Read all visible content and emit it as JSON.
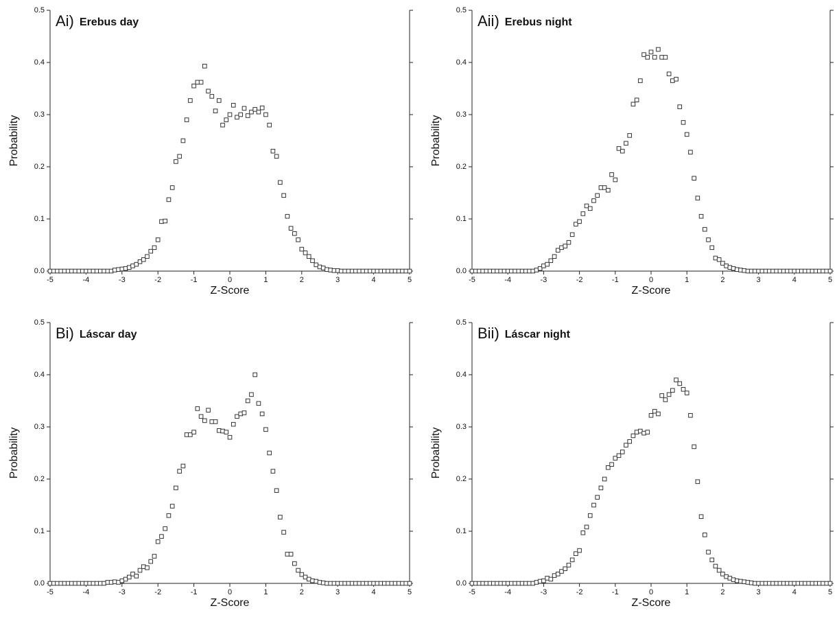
{
  "chart_data": [
    {
      "type": "scatter",
      "panel_label": "Ai)",
      "title": "Erebus day",
      "x_label": "Z-Score",
      "y_label": "Probability",
      "color": "#333333",
      "xlim": [
        -5,
        5
      ],
      "ylim": [
        0,
        0.5
      ],
      "xticks": [
        -5,
        -4,
        -3,
        -2,
        -1,
        0,
        1,
        2,
        3,
        4,
        5
      ],
      "yticks": [
        {
          "value": 0,
          "label": "0.0"
        },
        0.1,
        0.2,
        0.3,
        0.4,
        0.5
      ],
      "x": [
        -5,
        -4.9,
        -4.8,
        -4.7,
        -4.6,
        -4.5,
        -4.4,
        -4.3,
        -4.2,
        -4.1,
        -4,
        -3.9,
        -3.8,
        -3.7,
        -3.6,
        -3.5,
        -3.4,
        -3.3,
        -3.2,
        -3.1,
        -3,
        -2.9,
        -2.8,
        -2.7,
        -2.6,
        -2.5,
        -2.4,
        -2.3,
        -2.2,
        -2.1,
        -2,
        -1.9,
        -1.8,
        -1.7,
        -1.6,
        -1.5,
        -1.4,
        -1.3,
        -1.2,
        -1.1,
        -1,
        -0.9,
        -0.8,
        -0.7,
        -0.6,
        -0.5,
        -0.4,
        -0.3,
        -0.2,
        -0.1,
        0,
        0.1,
        0.2,
        0.3,
        0.4,
        0.5,
        0.6,
        0.7,
        0.8,
        0.9,
        1,
        1.1,
        1.2,
        1.3,
        1.4,
        1.5,
        1.6,
        1.7,
        1.8,
        1.9,
        2,
        2.1,
        2.2,
        2.3,
        2.4,
        2.5,
        2.6,
        2.7,
        2.8,
        2.9,
        3,
        3.1,
        3.2,
        3.3,
        3.4,
        3.5,
        3.6,
        3.7,
        3.8,
        3.9,
        4,
        4.1,
        4.2,
        4.3,
        4.4,
        4.5,
        4.6,
        4.7,
        4.8,
        4.9,
        5
      ],
      "values": [
        0,
        0,
        0,
        0,
        0,
        0,
        0,
        0,
        0,
        0,
        0,
        0,
        0,
        0,
        0,
        0,
        0,
        0,
        0.002,
        0.003,
        0.004,
        0.005,
        0.007,
        0.01,
        0.013,
        0.018,
        0.022,
        0.028,
        0.038,
        0.045,
        0.06,
        0.095,
        0.096,
        0.137,
        0.16,
        0.21,
        0.22,
        0.25,
        0.29,
        0.327,
        0.355,
        0.362,
        0.362,
        0.393,
        0.345,
        0.335,
        0.307,
        0.327,
        0.28,
        0.29,
        0.3,
        0.318,
        0.295,
        0.3,
        0.312,
        0.298,
        0.305,
        0.31,
        0.305,
        0.313,
        0.3,
        0.28,
        0.23,
        0.22,
        0.17,
        0.145,
        0.105,
        0.082,
        0.072,
        0.06,
        0.042,
        0.035,
        0.028,
        0.02,
        0.012,
        0.008,
        0.006,
        0.003,
        0.002,
        0.001,
        0.001,
        0,
        0,
        0,
        0,
        0,
        0,
        0,
        0,
        0,
        0,
        0,
        0,
        0,
        0,
        0,
        0,
        0,
        0,
        0,
        0
      ]
    },
    {
      "type": "scatter",
      "panel_label": "Aii)",
      "title": "Erebus night",
      "x_label": "Z-Score",
      "y_label": "Probability",
      "color": "#333333",
      "xlim": [
        -5,
        5
      ],
      "ylim": [
        0,
        0.5
      ],
      "xticks": [
        -5,
        -4,
        -3,
        -2,
        -1,
        0,
        1,
        2,
        3,
        4,
        5
      ],
      "yticks": [
        {
          "value": 0,
          "label": "0.0"
        },
        0.1,
        0.2,
        0.3,
        0.4,
        0.5
      ],
      "x": [
        -5,
        -4.9,
        -4.8,
        -4.7,
        -4.6,
        -4.5,
        -4.4,
        -4.3,
        -4.2,
        -4.1,
        -4,
        -3.9,
        -3.8,
        -3.7,
        -3.6,
        -3.5,
        -3.4,
        -3.3,
        -3.2,
        -3.1,
        -3,
        -2.9,
        -2.8,
        -2.7,
        -2.6,
        -2.5,
        -2.4,
        -2.3,
        -2.2,
        -2.1,
        -2,
        -1.9,
        -1.8,
        -1.7,
        -1.6,
        -1.5,
        -1.4,
        -1.3,
        -1.2,
        -1.1,
        -1,
        -0.9,
        -0.8,
        -0.7,
        -0.6,
        -0.5,
        -0.4,
        -0.3,
        -0.2,
        -0.1,
        0,
        0.1,
        0.2,
        0.3,
        0.4,
        0.5,
        0.6,
        0.7,
        0.8,
        0.9,
        1,
        1.1,
        1.2,
        1.3,
        1.4,
        1.5,
        1.6,
        1.7,
        1.8,
        1.9,
        2,
        2.1,
        2.2,
        2.3,
        2.4,
        2.5,
        2.6,
        2.7,
        2.8,
        2.9,
        3,
        3.1,
        3.2,
        3.3,
        3.4,
        3.5,
        3.6,
        3.7,
        3.8,
        3.9,
        4,
        4.1,
        4.2,
        4.3,
        4.4,
        4.5,
        4.6,
        4.7,
        4.8,
        4.9,
        5
      ],
      "values": [
        0,
        0,
        0,
        0,
        0,
        0,
        0,
        0,
        0,
        0,
        0,
        0,
        0,
        0,
        0,
        0,
        0,
        0,
        0.002,
        0.005,
        0.01,
        0.013,
        0.02,
        0.028,
        0.04,
        0.045,
        0.048,
        0.055,
        0.07,
        0.09,
        0.095,
        0.11,
        0.125,
        0.12,
        0.135,
        0.145,
        0.16,
        0.16,
        0.155,
        0.185,
        0.175,
        0.235,
        0.23,
        0.245,
        0.26,
        0.32,
        0.328,
        0.365,
        0.415,
        0.41,
        0.42,
        0.41,
        0.425,
        0.41,
        0.41,
        0.378,
        0.365,
        0.368,
        0.315,
        0.285,
        0.262,
        0.228,
        0.178,
        0.14,
        0.105,
        0.08,
        0.06,
        0.045,
        0.025,
        0.022,
        0.015,
        0.01,
        0.007,
        0.005,
        0.003,
        0.002,
        0.001,
        0,
        0,
        0,
        0,
        0,
        0,
        0,
        0,
        0,
        0,
        0,
        0,
        0,
        0,
        0,
        0,
        0,
        0,
        0,
        0,
        0,
        0,
        0,
        0
      ]
    },
    {
      "type": "scatter",
      "panel_label": "Bi)",
      "title": "Láscar day",
      "x_label": "Z-Score",
      "y_label": "Probability",
      "color": "#333333",
      "xlim": [
        -5,
        5
      ],
      "ylim": [
        0,
        0.5
      ],
      "xticks": [
        -5,
        -4,
        -3,
        -2,
        -1,
        0,
        1,
        2,
        3,
        4,
        5
      ],
      "yticks": [
        {
          "value": 0,
          "label": "0.0"
        },
        0.1,
        0.2,
        0.3,
        0.4,
        0.5
      ],
      "x": [
        -5,
        -4.9,
        -4.8,
        -4.7,
        -4.6,
        -4.5,
        -4.4,
        -4.3,
        -4.2,
        -4.1,
        -4,
        -3.9,
        -3.8,
        -3.7,
        -3.6,
        -3.5,
        -3.4,
        -3.3,
        -3.2,
        -3.1,
        -3,
        -2.9,
        -2.8,
        -2.7,
        -2.6,
        -2.5,
        -2.4,
        -2.3,
        -2.2,
        -2.1,
        -2,
        -1.9,
        -1.8,
        -1.7,
        -1.6,
        -1.5,
        -1.4,
        -1.3,
        -1.2,
        -1.1,
        -1,
        -0.9,
        -0.8,
        -0.7,
        -0.6,
        -0.5,
        -0.4,
        -0.3,
        -0.2,
        -0.1,
        0,
        0.1,
        0.2,
        0.3,
        0.4,
        0.5,
        0.6,
        0.7,
        0.8,
        0.9,
        1,
        1.1,
        1.2,
        1.3,
        1.4,
        1.5,
        1.6,
        1.7,
        1.8,
        1.9,
        2,
        2.1,
        2.2,
        2.3,
        2.4,
        2.5,
        2.6,
        2.7,
        2.8,
        2.9,
        3,
        3.1,
        3.2,
        3.3,
        3.4,
        3.5,
        3.6,
        3.7,
        3.8,
        3.9,
        4,
        4.1,
        4.2,
        4.3,
        4.4,
        4.5,
        4.6,
        4.7,
        4.8,
        4.9,
        5
      ],
      "values": [
        0,
        0,
        0,
        0,
        0,
        0,
        0,
        0,
        0,
        0,
        0,
        0,
        0,
        0,
        0,
        0,
        0.002,
        0.002,
        0.003,
        0.002,
        0.005,
        0.008,
        0.012,
        0.018,
        0.014,
        0.025,
        0.032,
        0.03,
        0.042,
        0.052,
        0.08,
        0.09,
        0.105,
        0.13,
        0.148,
        0.183,
        0.215,
        0.225,
        0.285,
        0.285,
        0.29,
        0.335,
        0.32,
        0.312,
        0.332,
        0.31,
        0.31,
        0.293,
        0.292,
        0.29,
        0.28,
        0.305,
        0.32,
        0.325,
        0.327,
        0.35,
        0.362,
        0.4,
        0.345,
        0.325,
        0.295,
        0.25,
        0.215,
        0.178,
        0.127,
        0.098,
        0.056,
        0.056,
        0.038,
        0.025,
        0.017,
        0.012,
        0.008,
        0.005,
        0.004,
        0.002,
        0.001,
        0,
        0,
        0,
        0,
        0,
        0,
        0,
        0,
        0,
        0,
        0,
        0,
        0,
        0,
        0,
        0,
        0,
        0,
        0,
        0,
        0,
        0,
        0,
        0
      ]
    },
    {
      "type": "scatter",
      "panel_label": "Bii)",
      "title": "Láscar night",
      "x_label": "Z-Score",
      "y_label": "Probability",
      "color": "#333333",
      "xlim": [
        -5,
        5
      ],
      "ylim": [
        0,
        0.5
      ],
      "xticks": [
        -5,
        -4,
        -3,
        -2,
        -1,
        0,
        1,
        2,
        3,
        4,
        5
      ],
      "yticks": [
        {
          "value": 0,
          "label": "0.0"
        },
        0.1,
        0.2,
        0.3,
        0.4,
        0.5
      ],
      "x": [
        -5,
        -4.9,
        -4.8,
        -4.7,
        -4.6,
        -4.5,
        -4.4,
        -4.3,
        -4.2,
        -4.1,
        -4,
        -3.9,
        -3.8,
        -3.7,
        -3.6,
        -3.5,
        -3.4,
        -3.3,
        -3.2,
        -3.1,
        -3,
        -2.9,
        -2.8,
        -2.7,
        -2.6,
        -2.5,
        -2.4,
        -2.3,
        -2.2,
        -2.1,
        -2,
        -1.9,
        -1.8,
        -1.7,
        -1.6,
        -1.5,
        -1.4,
        -1.3,
        -1.2,
        -1.1,
        -1,
        -0.9,
        -0.8,
        -0.7,
        -0.6,
        -0.5,
        -0.4,
        -0.3,
        -0.2,
        -0.1,
        0,
        0.1,
        0.2,
        0.3,
        0.4,
        0.5,
        0.6,
        0.7,
        0.8,
        0.9,
        1,
        1.1,
        1.2,
        1.3,
        1.4,
        1.5,
        1.6,
        1.7,
        1.8,
        1.9,
        2,
        2.1,
        2.2,
        2.3,
        2.4,
        2.5,
        2.6,
        2.7,
        2.8,
        2.9,
        3,
        3.1,
        3.2,
        3.3,
        3.4,
        3.5,
        3.6,
        3.7,
        3.8,
        3.9,
        4,
        4.1,
        4.2,
        4.3,
        4.4,
        4.5,
        4.6,
        4.7,
        4.8,
        4.9,
        5
      ],
      "values": [
        0,
        0,
        0,
        0,
        0,
        0,
        0,
        0,
        0,
        0,
        0,
        0,
        0,
        0,
        0,
        0,
        0,
        0,
        0.002,
        0.004,
        0.005,
        0.01,
        0.008,
        0.015,
        0.018,
        0.023,
        0.028,
        0.035,
        0.045,
        0.057,
        0.063,
        0.097,
        0.108,
        0.13,
        0.15,
        0.165,
        0.183,
        0.2,
        0.222,
        0.228,
        0.24,
        0.245,
        0.252,
        0.265,
        0.272,
        0.283,
        0.29,
        0.292,
        0.288,
        0.29,
        0.322,
        0.33,
        0.325,
        0.36,
        0.352,
        0.362,
        0.37,
        0.39,
        0.383,
        0.372,
        0.365,
        0.322,
        0.262,
        0.195,
        0.128,
        0.093,
        0.06,
        0.045,
        0.033,
        0.025,
        0.018,
        0.013,
        0.01,
        0.007,
        0.005,
        0.004,
        0.003,
        0.002,
        0.001,
        0,
        0,
        0,
        0,
        0,
        0,
        0,
        0,
        0,
        0,
        0,
        0,
        0,
        0,
        0,
        0,
        0,
        0,
        0,
        0,
        0,
        0
      ]
    }
  ]
}
